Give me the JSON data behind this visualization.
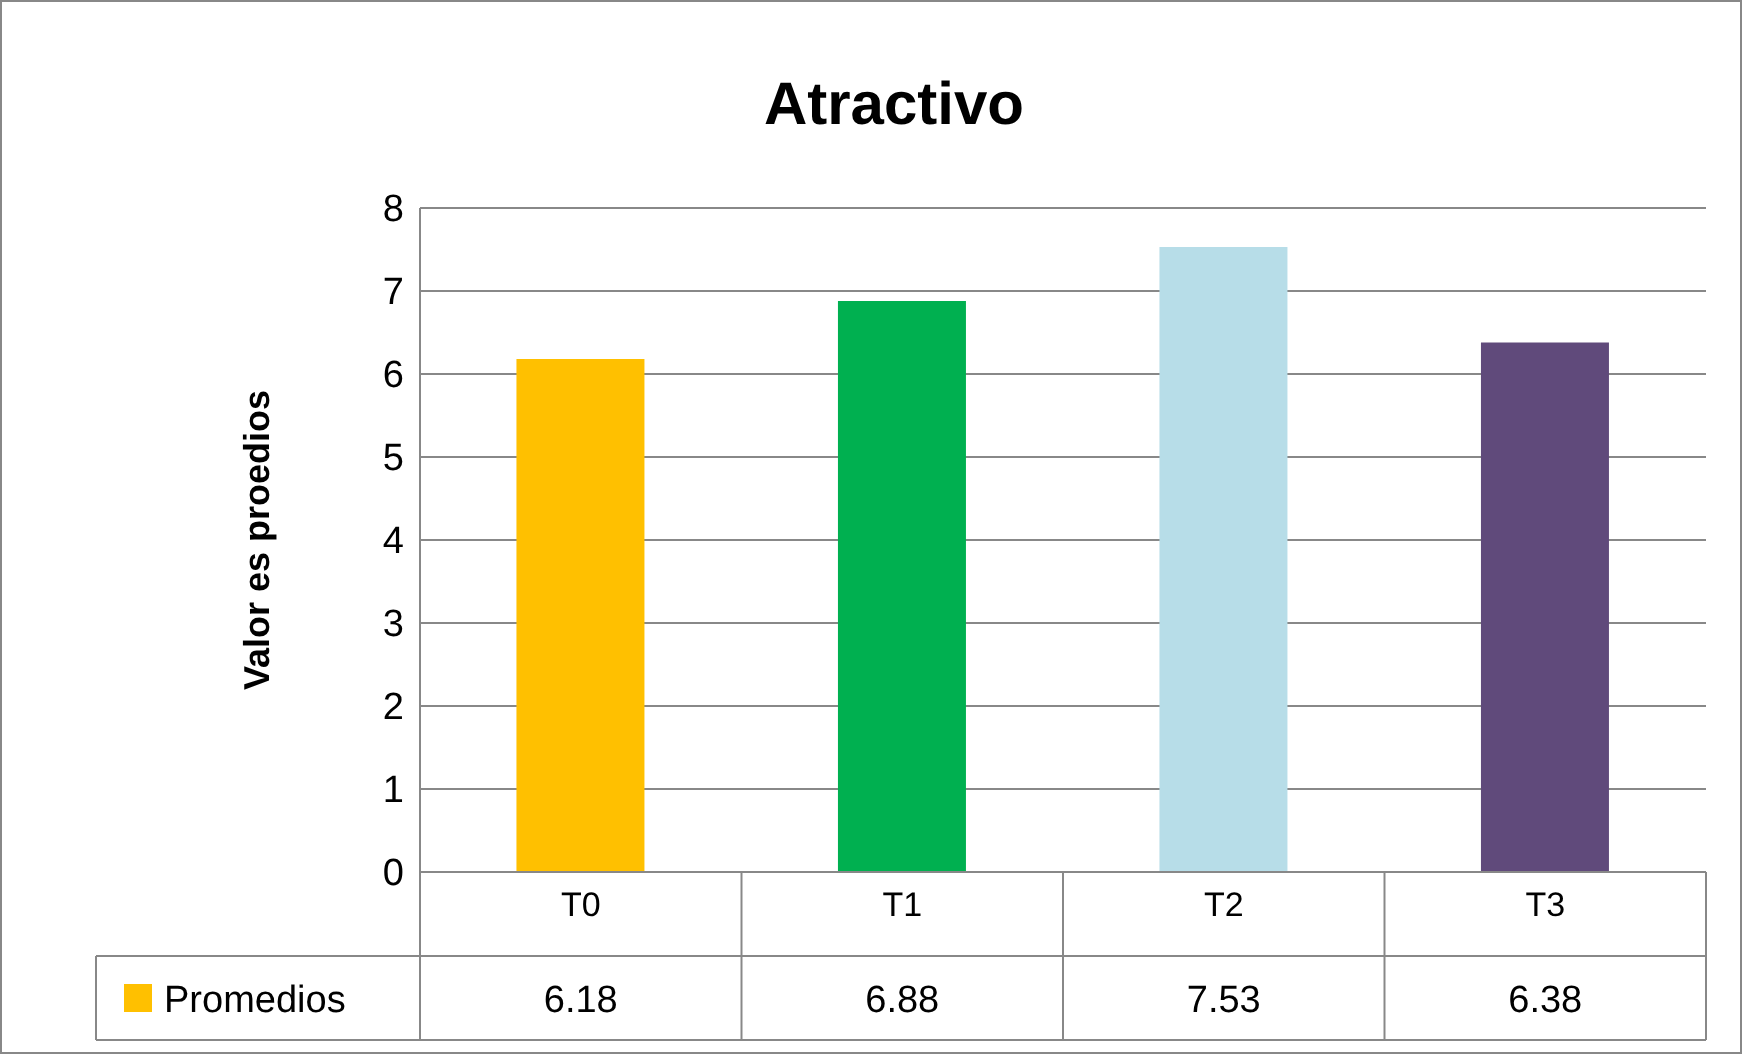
{
  "chart_data": {
    "type": "bar",
    "title": "Atractivo",
    "ylabel": "Valor es proedios",
    "categories": [
      "T0",
      "T1",
      "T2",
      "T3"
    ],
    "series": [
      {
        "name": "Promedios",
        "color": "#ffc000",
        "colors": [
          "#ffc000",
          "#00b050",
          "#b7dde8",
          "#604a7b"
        ],
        "values": [
          6.18,
          6.88,
          7.53,
          6.38
        ]
      }
    ],
    "ylim": [
      0,
      8
    ],
    "yticks": [
      0,
      1,
      2,
      3,
      4,
      5,
      6,
      7,
      8
    ],
    "grid": "y",
    "legend": "bottom left",
    "data_labels": true
  }
}
